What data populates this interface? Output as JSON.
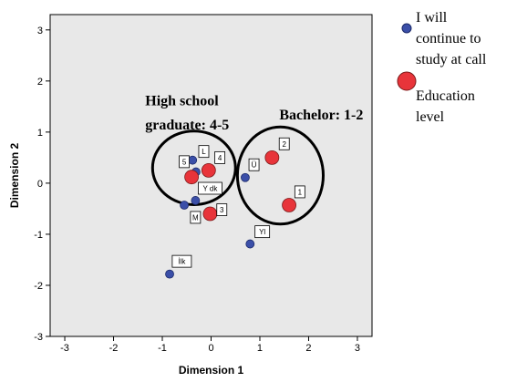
{
  "chart_data": {
    "type": "scatter",
    "title": "",
    "xlabel": "Dimension 1",
    "ylabel": "Dimension 2",
    "xlim": [
      -3.3,
      3.3
    ],
    "ylim": [
      -3.0,
      3.3
    ],
    "xticks": [
      -3,
      -2,
      -1,
      0,
      1,
      2,
      3
    ],
    "yticks": [
      -3,
      -2,
      -1,
      0,
      1,
      2,
      3
    ],
    "grid": false,
    "background": "#e8e8e8",
    "legend_position": "outside-right",
    "series": [
      {
        "name": "I will continue to study at call",
        "color": "#3b4fa8",
        "marker_size": "small",
        "points": [
          {
            "x": -0.38,
            "y": 0.45,
            "label": "L"
          },
          {
            "x": -0.32,
            "y": -0.34,
            "label": "Y dk"
          },
          {
            "x": -0.55,
            "y": -0.43,
            "label": ""
          },
          {
            "x": 0.7,
            "y": 0.11,
            "label": "Ü"
          },
          {
            "x": 0.8,
            "y": -1.19,
            "label": "Yl"
          },
          {
            "x": -0.85,
            "y": -1.78,
            "label": "İlk"
          },
          {
            "x": -0.31,
            "y": 0.22,
            "label": ""
          }
        ]
      },
      {
        "name": "Education level",
        "color": "#e8343a",
        "marker_size": "large",
        "points": [
          {
            "x": 1.25,
            "y": 0.5,
            "label": "2"
          },
          {
            "x": 1.6,
            "y": -0.43,
            "label": "1"
          },
          {
            "x": -0.4,
            "y": 0.12,
            "label": "5"
          },
          {
            "x": -0.05,
            "y": 0.25,
            "label": "4"
          },
          {
            "x": -0.02,
            "y": -0.6,
            "label": "3"
          }
        ]
      }
    ],
    "point_labels": [
      {
        "text": "5",
        "x": -0.55,
        "y": 0.42
      },
      {
        "text": "L",
        "x": -0.15,
        "y": 0.62
      },
      {
        "text": "4",
        "x": 0.18,
        "y": 0.5
      },
      {
        "text": "Y dk",
        "x": -0.02,
        "y": -0.1
      },
      {
        "text": "M",
        "x": -0.32,
        "y": -0.67
      },
      {
        "text": "3",
        "x": 0.22,
        "y": -0.52
      },
      {
        "text": "Ü",
        "x": 0.88,
        "y": 0.36
      },
      {
        "text": "2",
        "x": 1.5,
        "y": 0.77
      },
      {
        "text": "1",
        "x": 1.82,
        "y": -0.17
      },
      {
        "text": "Yl",
        "x": 1.05,
        "y": -0.95
      },
      {
        "text": "İlk",
        "x": -0.6,
        "y": -1.53
      }
    ],
    "annotations": [
      {
        "text": "High school",
        "x": -1.35,
        "y": 1.52
      },
      {
        "text": "graduate: 4-5",
        "x": -1.35,
        "y": 1.05
      },
      {
        "text": "Bachelor: 1-2",
        "x": 1.4,
        "y": 1.25
      }
    ],
    "ellipses": [
      {
        "cx": -0.35,
        "cy": 0.3,
        "rx": 0.85,
        "ry": 0.72
      },
      {
        "cx": 1.42,
        "cy": 0.15,
        "rx": 0.88,
        "ry": 0.95
      }
    ],
    "legend": [
      {
        "lines": [
          "I will",
          "continue to",
          "study at call"
        ],
        "color": "#3b4fa8",
        "size": "small"
      },
      {
        "lines": [
          "Education",
          "level"
        ],
        "color": "#e8343a",
        "size": "large"
      }
    ]
  }
}
